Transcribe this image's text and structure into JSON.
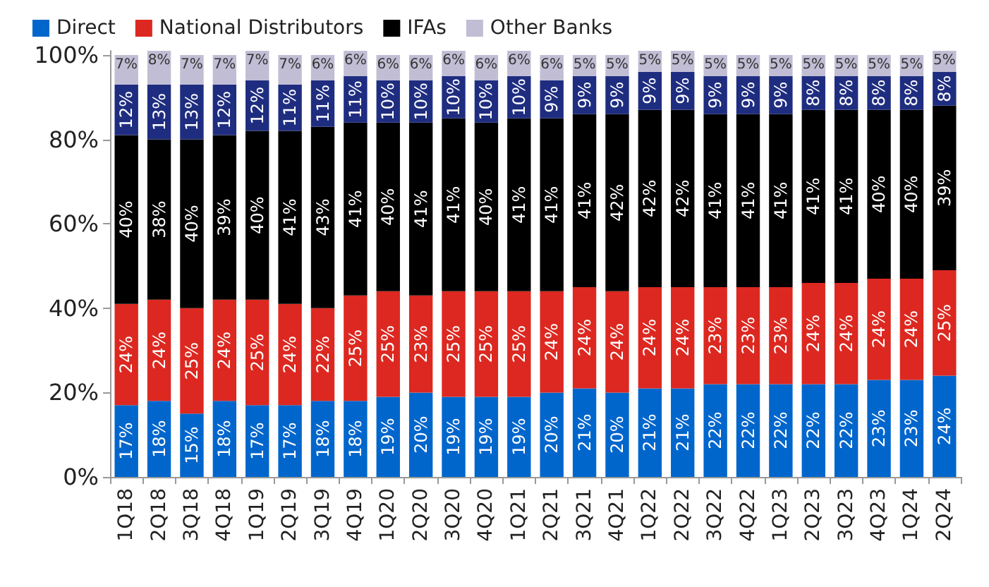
{
  "chart_data": {
    "type": "bar",
    "stacked": true,
    "legend": "top left",
    "grid": false,
    "categories": [
      "1Q18",
      "2Q18",
      "3Q18",
      "4Q18",
      "1Q19",
      "2Q19",
      "3Q19",
      "4Q19",
      "1Q20",
      "2Q20",
      "3Q20",
      "4Q20",
      "1Q21",
      "2Q21",
      "3Q21",
      "4Q21",
      "1Q22",
      "2Q22",
      "3Q22",
      "4Q22",
      "1Q23",
      "2Q23",
      "3Q23",
      "4Q23",
      "1Q24",
      "2Q24"
    ],
    "ylim": [
      0,
      101
    ],
    "yticks": [
      {
        "value": 0,
        "label": "0%"
      },
      {
        "value": 20,
        "label": "20%"
      },
      {
        "value": 40,
        "label": "40%"
      },
      {
        "value": 60,
        "label": "60%"
      },
      {
        "value": 80,
        "label": "80%"
      },
      {
        "value": 100,
        "label": "100%"
      }
    ],
    "series": [
      {
        "name": "Direct",
        "color": "#0066cc",
        "values": [
          17,
          18,
          15,
          18,
          17,
          17,
          18,
          18,
          19,
          20,
          19,
          19,
          19,
          20,
          21,
          20,
          21,
          21,
          22,
          22,
          22,
          22,
          22,
          23,
          23,
          24
        ],
        "value_labels": [
          "17%",
          "18%",
          "15%",
          "18%",
          "17%",
          "17%",
          "18%",
          "18%",
          "19%",
          "20%",
          "19%",
          "19%",
          "19%",
          "20%",
          "21%",
          "20%",
          "21%",
          "21%",
          "22%",
          "22%",
          "22%",
          "22%",
          "22%",
          "23%",
          "23%",
          "24%"
        ]
      },
      {
        "name": "National Distributors",
        "color": "#dc2820",
        "values": [
          24,
          24,
          25,
          24,
          25,
          24,
          22,
          25,
          25,
          23,
          25,
          25,
          25,
          24,
          24,
          24,
          24,
          24,
          23,
          23,
          23,
          24,
          24,
          24,
          24,
          25
        ],
        "value_labels": [
          "24%",
          "24%",
          "25%",
          "24%",
          "25%",
          "24%",
          "22%",
          "25%",
          "25%",
          "23%",
          "25%",
          "25%",
          "25%",
          "24%",
          "24%",
          "24%",
          "24%",
          "24%",
          "23%",
          "23%",
          "23%",
          "24%",
          "24%",
          "24%",
          "24%",
          "25%"
        ]
      },
      {
        "name": "IFAs",
        "color": "#000000",
        "values": [
          40,
          38,
          40,
          39,
          40,
          41,
          43,
          41,
          40,
          41,
          41,
          40,
          41,
          41,
          41,
          42,
          42,
          42,
          41,
          41,
          41,
          41,
          41,
          40,
          40,
          39
        ],
        "value_labels": [
          "40%",
          "38%",
          "40%",
          "39%",
          "40%",
          "41%",
          "43%",
          "41%",
          "40%",
          "41%",
          "41%",
          "40%",
          "41%",
          "41%",
          "41%",
          "42%",
          "42%",
          "42%",
          "41%",
          "41%",
          "41%",
          "41%",
          "41%",
          "40%",
          "40%",
          "39%"
        ]
      },
      {
        "color": "#1f2d80",
        "values": [
          12,
          13,
          13,
          12,
          12,
          11,
          11,
          11,
          10,
          10,
          10,
          10,
          10,
          9,
          9,
          9,
          9,
          9,
          9,
          9,
          9,
          8,
          8,
          8,
          8,
          8
        ],
        "value_labels": [
          "12%",
          "13%",
          "13%",
          "12%",
          "12%",
          "11%",
          "11%",
          "11%",
          "10%",
          "10%",
          "10%",
          "10%",
          "10%",
          "9%",
          "9%",
          "9%",
          "9%",
          "9%",
          "9%",
          "9%",
          "9%",
          "8%",
          "8%",
          "8%",
          "8%",
          "8%"
        ]
      },
      {
        "name": "Other Banks",
        "color": "#c0bdd4",
        "values": [
          7,
          8,
          7,
          7,
          7,
          7,
          6,
          6,
          6,
          6,
          6,
          6,
          6,
          6,
          5,
          5,
          5,
          5,
          5,
          5,
          5,
          5,
          5,
          5,
          5,
          5
        ],
        "value_labels": [
          "7%",
          "8%",
          "7%",
          "7%",
          "7%",
          "7%",
          "6%",
          "6%",
          "6%",
          "6%",
          "6%",
          "6%",
          "6%",
          "6%",
          "5%",
          "5%",
          "5%",
          "5%",
          "5%",
          "5%",
          "5%",
          "5%",
          "5%",
          "5%",
          "5%",
          "5%"
        ]
      }
    ]
  }
}
